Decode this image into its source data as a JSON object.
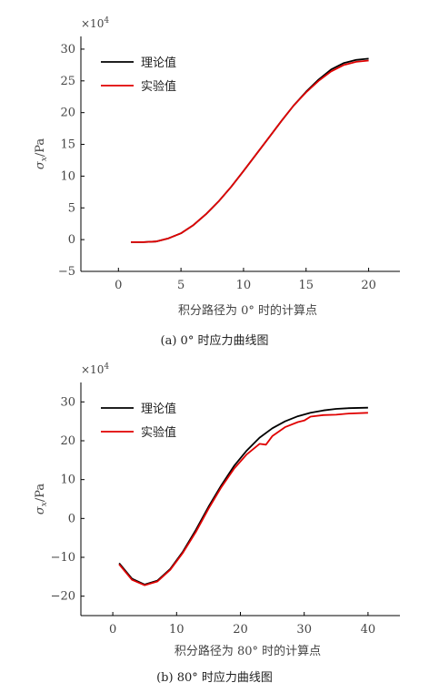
{
  "chart_data": [
    {
      "type": "line",
      "multiplier_base": "×10",
      "multiplier_exp": "4",
      "ylabel_main": "σ",
      "ylabel_sub": "x",
      "ylabel_unit": "/Pa",
      "xlabel": "积分路径为 0° 时的计算点",
      "caption": "(a) 0° 时应力曲线图",
      "xlim": [
        -3,
        22.5
      ],
      "ylim": [
        -5,
        32
      ],
      "xticks": [
        0,
        5,
        10,
        15,
        20
      ],
      "yticks": [
        -5,
        0,
        5,
        10,
        15,
        20,
        25,
        30
      ],
      "legend": [
        "理论值",
        "实验值"
      ],
      "legend_position": "top-left",
      "series": [
        {
          "name": "理论值",
          "color": "#000000",
          "x": [
            1,
            2,
            3,
            4,
            5,
            6,
            7,
            8,
            9,
            10,
            11,
            12,
            13,
            14,
            15,
            16,
            17,
            18,
            19,
            20
          ],
          "values": [
            -0.4,
            -0.4,
            -0.3,
            0.2,
            1.0,
            2.3,
            4.0,
            6.0,
            8.3,
            10.8,
            13.4,
            16.0,
            18.6,
            21.1,
            23.3,
            25.2,
            26.8,
            27.8,
            28.3,
            28.5
          ]
        },
        {
          "name": "实验值",
          "color": "#e00000",
          "x": [
            1,
            2,
            3,
            4,
            5,
            6,
            7,
            8,
            9,
            10,
            11,
            12,
            13,
            14,
            15,
            16,
            17,
            18,
            19,
            20
          ],
          "values": [
            -0.4,
            -0.4,
            -0.3,
            0.2,
            1.0,
            2.3,
            4.0,
            6.0,
            8.3,
            10.8,
            13.4,
            16.0,
            18.6,
            21.1,
            23.2,
            25.0,
            26.5,
            27.5,
            28.0,
            28.2
          ]
        }
      ]
    },
    {
      "type": "line",
      "multiplier_base": "×10",
      "multiplier_exp": "4",
      "ylabel_main": "σ",
      "ylabel_sub": "x",
      "ylabel_unit": "/Pa",
      "xlabel": "积分路径为 80° 时的计算点",
      "caption": "(b) 80° 时应力曲线图",
      "xlim": [
        -5,
        45
      ],
      "ylim": [
        -25,
        35
      ],
      "xticks": [
        0,
        10,
        20,
        30,
        40
      ],
      "yticks": [
        -20,
        -10,
        0,
        10,
        20,
        30
      ],
      "legend": [
        "理论值",
        "实验值"
      ],
      "legend_position": "top-left",
      "series": [
        {
          "name": "理论值",
          "color": "#000000",
          "x": [
            1,
            3,
            5,
            7,
            9,
            11,
            13,
            15,
            17,
            19,
            21,
            23,
            25,
            27,
            29,
            31,
            33,
            35,
            37,
            40
          ],
          "values": [
            -11.5,
            -15.5,
            -17.0,
            -16.0,
            -13.0,
            -8.5,
            -3.0,
            3.0,
            8.5,
            13.5,
            17.5,
            20.8,
            23.2,
            25.0,
            26.3,
            27.2,
            27.8,
            28.2,
            28.4,
            28.5
          ]
        },
        {
          "name": "实验值",
          "color": "#e00000",
          "x": [
            1,
            3,
            5,
            7,
            9,
            11,
            13,
            15,
            17,
            19,
            21,
            23,
            24,
            25,
            27,
            29,
            30,
            31,
            33,
            35,
            37,
            40
          ],
          "values": [
            -11.8,
            -15.8,
            -17.2,
            -16.2,
            -13.2,
            -8.8,
            -3.5,
            2.5,
            8.0,
            12.8,
            16.5,
            19.2,
            19.0,
            21.2,
            23.5,
            24.8,
            25.2,
            26.2,
            26.6,
            26.7,
            27.0,
            27.2
          ]
        }
      ]
    }
  ]
}
